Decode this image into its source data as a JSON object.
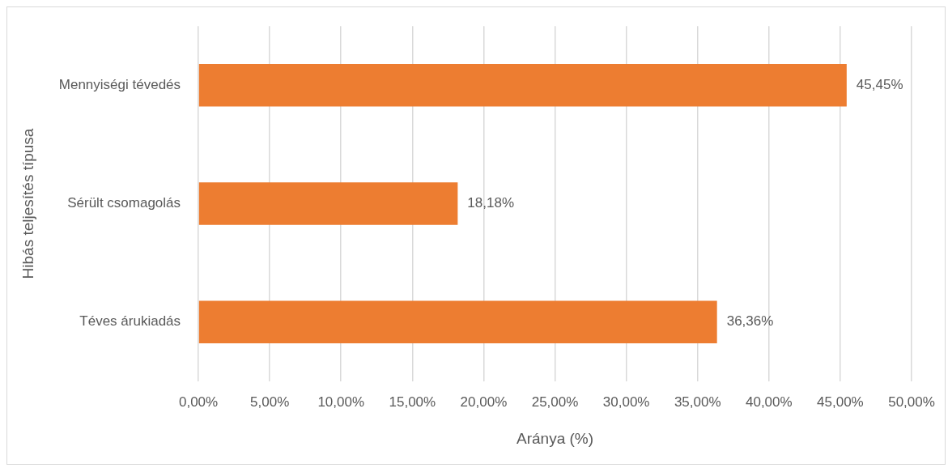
{
  "chart_data": {
    "type": "bar",
    "orientation": "horizontal",
    "xlabel": "Aránya (%)",
    "ylabel": "Hibás teljesítés típusa",
    "categories": [
      "Mennyiségi tévedés",
      "Sérült csomagolás",
      "Téves árukiadás"
    ],
    "values": [
      45.45,
      18.18,
      36.36
    ],
    "color": "#ed7d31",
    "value_labels": [
      "45,45%",
      "18,18%",
      "36,36%"
    ],
    "xlim": [
      0,
      50
    ],
    "xticks": [
      {
        "value": 0,
        "label": "0,00%"
      },
      {
        "value": 5,
        "label": "5,00%"
      },
      {
        "value": 10,
        "label": "10,00%"
      },
      {
        "value": 15,
        "label": "15,00%"
      },
      {
        "value": 20,
        "label": "20,00%"
      },
      {
        "value": 25,
        "label": "25,00%"
      },
      {
        "value": 30,
        "label": "30,00%"
      },
      {
        "value": 35,
        "label": "35,00%"
      },
      {
        "value": 40,
        "label": "40,00%"
      },
      {
        "value": 45,
        "label": "45,00%"
      },
      {
        "value": 50,
        "label": "50,00%"
      }
    ],
    "grid": "x"
  }
}
